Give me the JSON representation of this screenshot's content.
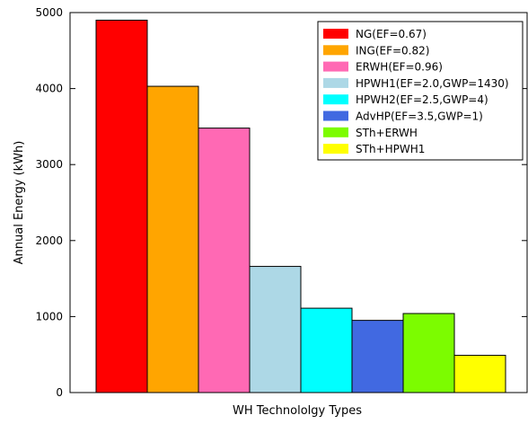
{
  "chart_data": {
    "type": "bar",
    "title": "",
    "xlabel": "WH Technololgy Types",
    "ylabel": "Annual Energy (kWh)",
    "ylim": [
      0,
      5000
    ],
    "yticks": [
      0,
      1000,
      2000,
      3000,
      4000,
      5000
    ],
    "grid": false,
    "legend_position": "top-right",
    "series": [
      {
        "name": "NG(EF=0.67)",
        "value": 4900,
        "color": "#ff0000"
      },
      {
        "name": "ING(EF=0.82)",
        "value": 4030,
        "color": "#ffa500"
      },
      {
        "name": "ERWH(EF=0.96)",
        "value": 3480,
        "color": "#ff69b4"
      },
      {
        "name": "HPWH1(EF=2.0,GWP=1430)",
        "value": 1660,
        "color": "#add8e6"
      },
      {
        "name": "HPWH2(EF=2.5,GWP=4)",
        "value": 1110,
        "color": "#00ffff"
      },
      {
        "name": "AdvHP(EF=3.5,GWP=1)",
        "value": 950,
        "color": "#4169e1"
      },
      {
        "name": "STh+ERWH",
        "value": 1040,
        "color": "#7cfc00"
      },
      {
        "name": "STh+HPWH1",
        "value": 490,
        "color": "#ffff00"
      }
    ]
  }
}
